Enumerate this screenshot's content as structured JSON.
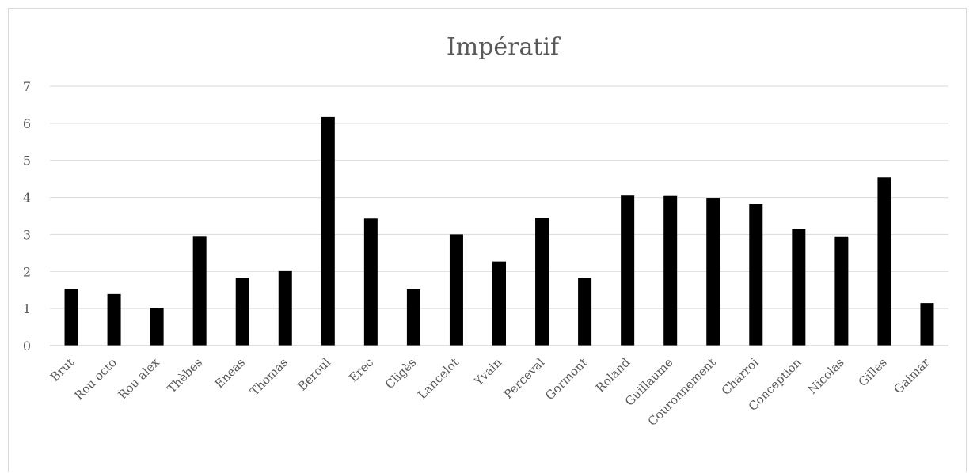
{
  "chart_data": {
    "type": "bar",
    "title": "Impératif",
    "xlabel": "",
    "ylabel": "",
    "ylim": [
      0,
      7
    ],
    "yticks": [
      0,
      1,
      2,
      3,
      4,
      5,
      6,
      7
    ],
    "grid": true,
    "legend": "none",
    "bar_color": "#000000",
    "categories": [
      "Brut",
      "Rou octo",
      "Rou alex",
      "Thèbes",
      "Eneas",
      "Thomas",
      "Béroul",
      "Erec",
      "Cligès",
      "Lancelot",
      "Yvain",
      "Perceval",
      "Gormont",
      "Roland",
      "Guillaume",
      "Couronnement",
      "Charroi",
      "Conception",
      "Nicolas",
      "Gilles",
      "Gaimar"
    ],
    "values": [
      1.53,
      1.39,
      1.02,
      2.96,
      1.83,
      2.03,
      6.17,
      3.43,
      1.52,
      3.0,
      2.27,
      3.45,
      1.82,
      4.05,
      4.04,
      3.99,
      3.82,
      3.15,
      2.95,
      4.54,
      1.15
    ]
  }
}
